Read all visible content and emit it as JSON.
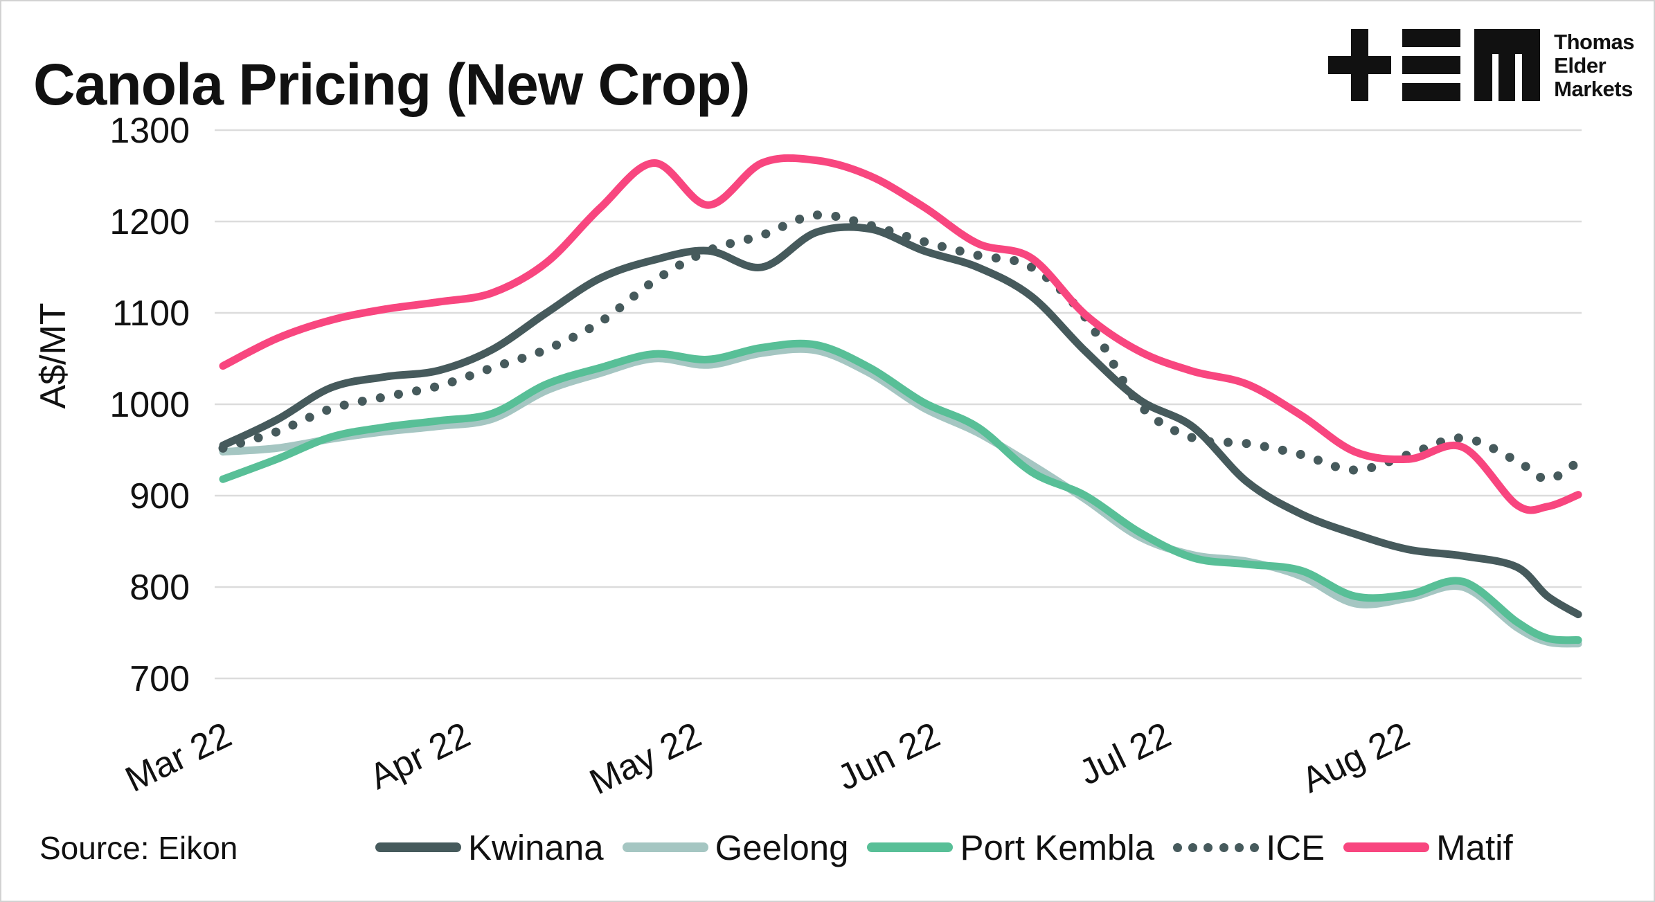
{
  "title": "Canola Pricing (New Crop)",
  "logo": {
    "lines": [
      "Thomas",
      "Elder",
      "Markets"
    ],
    "color": "#111111"
  },
  "source": "Source: Eikon",
  "colors": {
    "kwinana": "#465a5c",
    "geelong": "#a5c6c2",
    "port_kembla": "#58bf97",
    "ice": "#465a5c",
    "matif": "#f8467f",
    "grid": "#dcdcdc",
    "text": "#111111"
  },
  "chart_data": {
    "type": "line",
    "title": "Canola Pricing (New Crop)",
    "xlabel": "",
    "ylabel": "A$/MT",
    "ylim": [
      650,
      1320
    ],
    "grid": "horizontal-only",
    "legend_position": "bottom",
    "yticks": [
      {
        "label": "1300",
        "value": 1300
      },
      {
        "label": "1200",
        "value": 1200
      },
      {
        "label": "1100",
        "value": 1100
      },
      {
        "label": "1000",
        "value": 1000
      },
      {
        "label": "900",
        "value": 900
      },
      {
        "label": "800",
        "value": 800
      },
      {
        "label": "700",
        "value": 700
      }
    ],
    "xticks": [
      {
        "label": "Mar 22",
        "day": 0
      },
      {
        "label": "Apr 22",
        "day": 31
      },
      {
        "label": "May 22",
        "day": 61
      },
      {
        "label": "Jun 22",
        "day": 92
      },
      {
        "label": "Jul 22",
        "day": 122
      },
      {
        "label": "Aug 22",
        "day": 153
      }
    ],
    "x_days": [
      0,
      7,
      14,
      21,
      28,
      35,
      42,
      49,
      56,
      63,
      70,
      77,
      84,
      91,
      98,
      105,
      112,
      119,
      126,
      133,
      140,
      147,
      154,
      161,
      168,
      172,
      176
    ],
    "x_dates": [
      "Mar 1",
      "Mar 8",
      "Mar 15",
      "Mar 22",
      "Mar 29",
      "Apr 5",
      "Apr 12",
      "Apr 19",
      "Apr 26",
      "May 3",
      "May 10",
      "May 17",
      "May 24",
      "May 31",
      "Jun 7",
      "Jun 14",
      "Jun 21",
      "Jun 28",
      "Jul 5",
      "Jul 12",
      "Jul 19",
      "Jul 26",
      "Aug 2",
      "Aug 9",
      "Aug 16",
      "Aug 20",
      "Aug 24"
    ],
    "series": [
      {
        "name": "Kwinana",
        "style": "solid",
        "color": "#465a5c",
        "values": [
          955,
          983,
          1018,
          1030,
          1037,
          1060,
          1100,
          1138,
          1158,
          1168,
          1150,
          1188,
          1192,
          1168,
          1150,
          1118,
          1058,
          1005,
          975,
          915,
          880,
          858,
          841,
          834,
          822,
          790,
          770
        ]
      },
      {
        "name": "Geelong",
        "style": "solid",
        "color": "#a5c6c2",
        "values": [
          948,
          952,
          962,
          970,
          976,
          984,
          1015,
          1034,
          1050,
          1043,
          1056,
          1059,
          1034,
          996,
          969,
          934,
          896,
          855,
          835,
          828,
          812,
          782,
          788,
          800,
          756,
          740,
          738
        ]
      },
      {
        "name": "Port Kembla",
        "style": "solid",
        "color": "#58bf97",
        "values": [
          918,
          940,
          964,
          975,
          982,
          990,
          1022,
          1040,
          1055,
          1049,
          1062,
          1065,
          1040,
          1002,
          975,
          926,
          900,
          860,
          832,
          825,
          818,
          790,
          792,
          806,
          762,
          744,
          742
        ]
      },
      {
        "name": "ICE",
        "style": "dotted",
        "color": "#465a5c",
        "values": [
          952,
          970,
          995,
          1008,
          1020,
          1040,
          1060,
          1090,
          1135,
          1168,
          1185,
          1207,
          1196,
          1178,
          1163,
          1150,
          1095,
          1000,
          963,
          957,
          945,
          928,
          945,
          963,
          938,
          918,
          937
        ]
      },
      {
        "name": "Matif",
        "style": "solid",
        "color": "#f8467f",
        "values": [
          1042,
          1072,
          1092,
          1104,
          1112,
          1122,
          1155,
          1215,
          1264,
          1218,
          1264,
          1267,
          1250,
          1216,
          1176,
          1160,
          1098,
          1058,
          1036,
          1022,
          988,
          948,
          940,
          953,
          890,
          888,
          901
        ]
      }
    ],
    "draw_order": [
      1,
      2,
      3,
      0,
      4
    ]
  }
}
